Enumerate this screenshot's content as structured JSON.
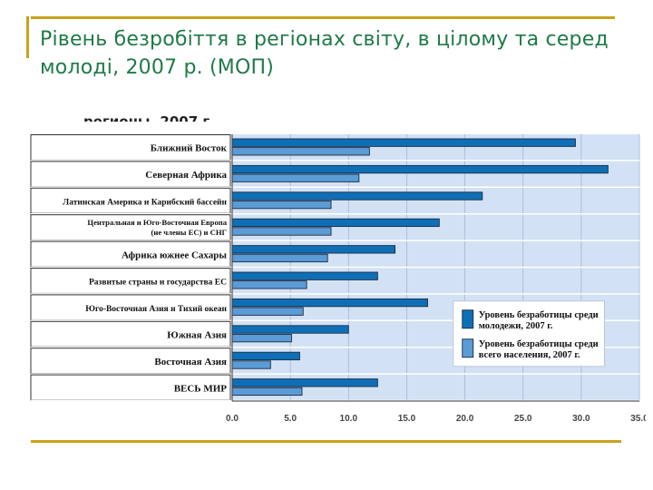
{
  "slide": {
    "title": "Рівень безробіття в регіонах світу, в цілому та серед молоді, 2007 р. (МОП)",
    "cut_caption": "регионы, 2007 г."
  },
  "colors": {
    "accent_rule": "#c8a21a",
    "title_text": "#1f7a46",
    "plot_bg": "#d3e1f4",
    "youth_bar": "#0f6fb6",
    "total_bar": "#5b9bd6"
  },
  "chart_data": {
    "type": "bar",
    "orientation": "horizontal",
    "categories": [
      "Ближний Восток",
      "Северная Африка",
      "Латинская Америка и Карибский бассейн",
      "Центральная и Юго-Восточная Европа (не члены ЕС) и СНГ",
      "Африка южнее Сахары",
      "Развитые страны и государства ЕС",
      "Юго-Восточная Азия и Тихий океан",
      "Южная Азия",
      "Восточная Азия",
      "ВЕСЬ МИР"
    ],
    "category_lines": [
      [
        "Ближний Восток"
      ],
      [
        "Северная Африка"
      ],
      [
        "Латинская Америка и Карибский бассейн"
      ],
      [
        "Центральная и Юго-Восточная Европа",
        "(не члены ЕС) и СНГ"
      ],
      [
        "Африка южнее Сахары"
      ],
      [
        "Развитые страны и государства ЕС"
      ],
      [
        "Юго-Восточная Азия и Тихий океан"
      ],
      [
        "Южная Азия"
      ],
      [
        "Восточная Азия"
      ],
      [
        "ВЕСЬ МИР"
      ]
    ],
    "series": [
      {
        "name": "Уровень безработицы среди молодежи, 2007 г.",
        "legend_lines": [
          "Уровень безработицы среди",
          "молодежи, 2007 г."
        ],
        "color": "#0f6fb6",
        "values": [
          29.5,
          32.3,
          21.5,
          17.8,
          14.0,
          12.5,
          16.8,
          10.0,
          5.8,
          12.5
        ]
      },
      {
        "name": "Уровень безработицы среди всего населения, 2007 г.",
        "legend_lines": [
          "Уровень безработицы среди",
          "всего населения, 2007 г."
        ],
        "color": "#5b9bd6",
        "values": [
          11.8,
          10.9,
          8.5,
          8.5,
          8.2,
          6.4,
          6.1,
          5.1,
          3.3,
          6.0
        ]
      }
    ],
    "xlim": [
      0,
      35
    ],
    "xticks": [
      "0.0",
      "5.0",
      "10.0",
      "15.0",
      "20.0",
      "25.0",
      "30.0",
      "35.0"
    ],
    "grid": true,
    "legend_position": "lower-right"
  }
}
